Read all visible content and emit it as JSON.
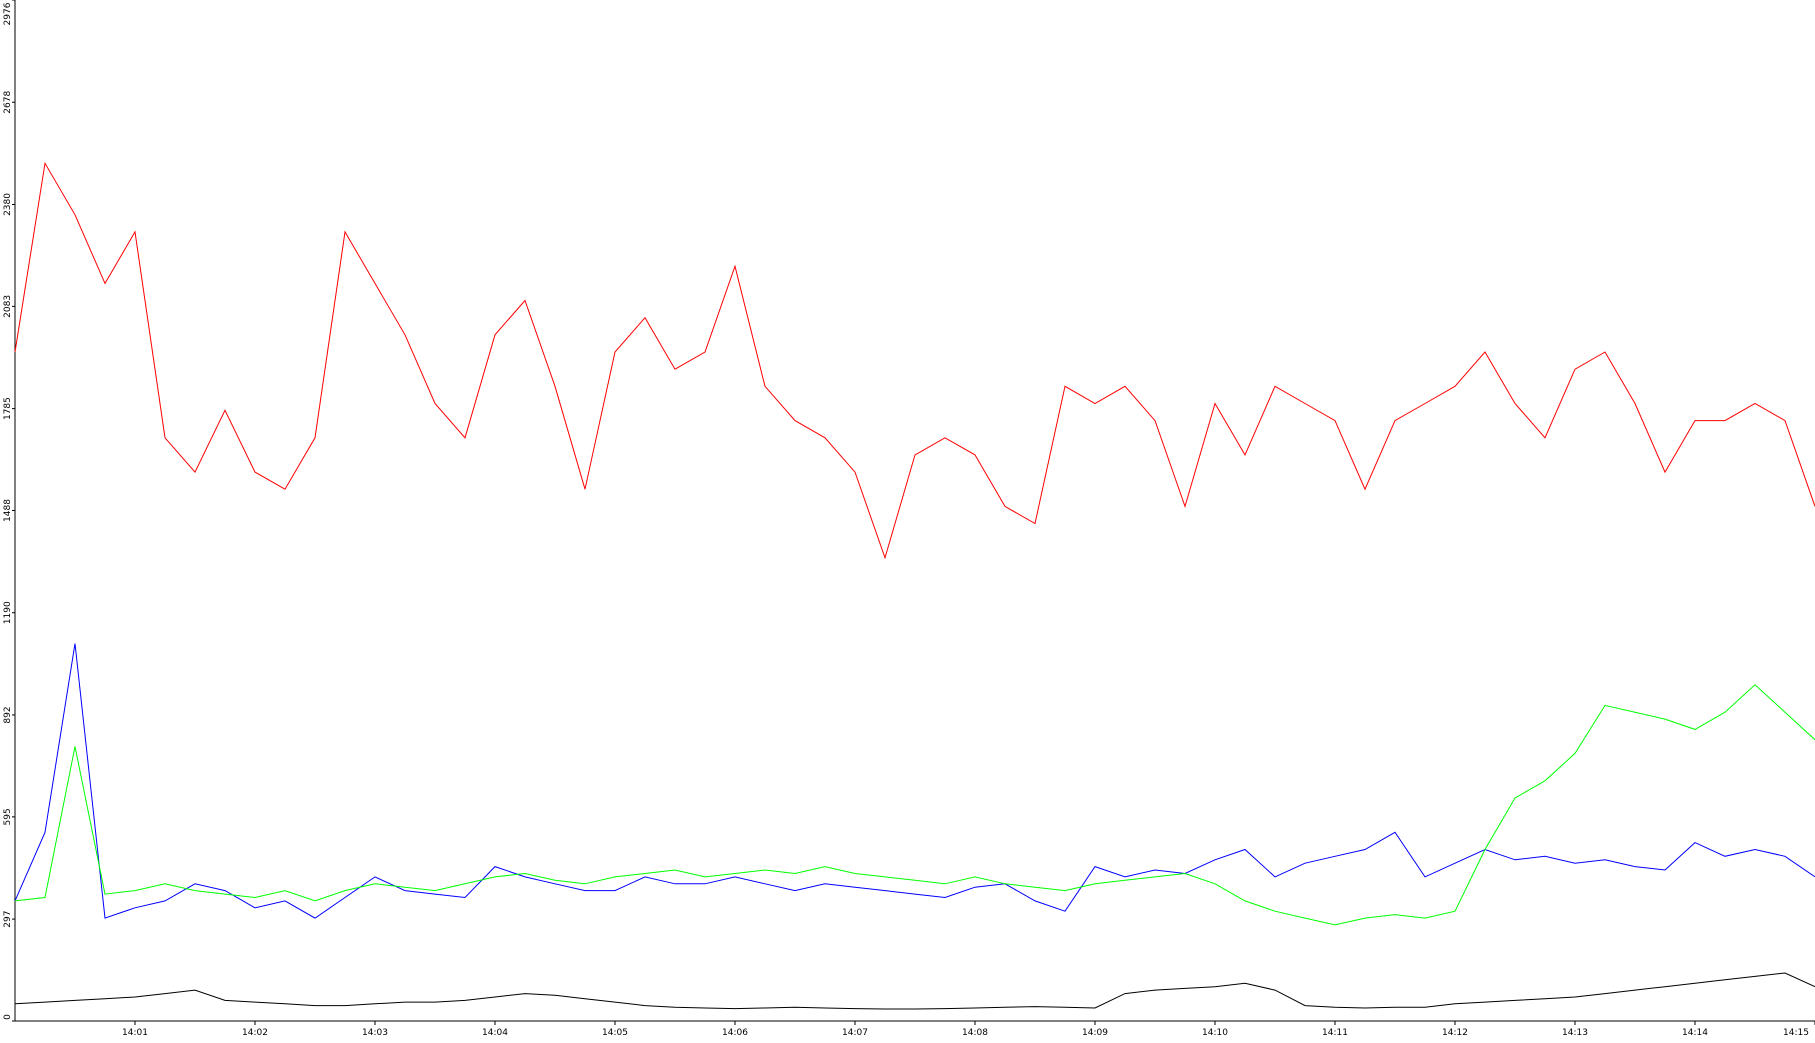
{
  "chart_data": {
    "type": "line",
    "title": "",
    "xlabel": "",
    "ylabel": "",
    "y_ticks": [
      "0",
      "297",
      "595",
      "892",
      "1190",
      "1488",
      "1785",
      "2083",
      "2380",
      "2678",
      "2976"
    ],
    "x_ticks": [
      "14:01",
      "14:02",
      "14:03",
      "14:04",
      "14:05",
      "14:06",
      "14:07",
      "14:08",
      "14:09",
      "14:10",
      "14:11",
      "14:12",
      "14:13",
      "14:14",
      "14:15"
    ],
    "x_range_minutes": [
      0.0,
      15.0
    ],
    "ylim": [
      0,
      2976
    ],
    "grid": false,
    "legend": "none",
    "series": [
      {
        "color": "#ff0000",
        "x": [
          0.0,
          0.25,
          0.5,
          0.75,
          1.0,
          1.25,
          1.5,
          1.75,
          2.0,
          2.25,
          2.5,
          2.75,
          3.0,
          3.25,
          3.5,
          3.75,
          4.0,
          4.25,
          4.5,
          4.75,
          5.0,
          5.25,
          5.5,
          5.75,
          6.0,
          6.25,
          6.5,
          6.75,
          7.0,
          7.25,
          7.5,
          7.75,
          8.0,
          8.25,
          8.5,
          8.75,
          9.0,
          9.25,
          9.5,
          9.75,
          10.0,
          10.25,
          10.5,
          10.75,
          11.0,
          11.25,
          11.5,
          11.75,
          12.0,
          12.25,
          12.5,
          12.75,
          13.0,
          13.25,
          13.5,
          13.75,
          14.0,
          14.25,
          14.5,
          14.75,
          15.0
        ],
        "values": [
          1950,
          2500,
          2350,
          2150,
          2300,
          1700,
          1600,
          1780,
          1600,
          1550,
          1700,
          2300,
          2150,
          2000,
          1800,
          1700,
          2000,
          2100,
          1850,
          1550,
          1950,
          2050,
          1900,
          1950,
          2200,
          1850,
          1750,
          1700,
          1600,
          1350,
          1650,
          1700,
          1650,
          1500,
          1450,
          1850,
          1800,
          1850,
          1750,
          1500,
          1800,
          1650,
          1850,
          1800,
          1750,
          1550,
          1750,
          1800,
          1850,
          1950,
          1800,
          1700,
          1900,
          1950,
          1800,
          1600,
          1750,
          1750,
          1800,
          1750,
          1500
        ]
      },
      {
        "color": "#0000ff",
        "x": [
          0.0,
          0.25,
          0.5,
          0.75,
          1.0,
          1.25,
          1.5,
          1.75,
          2.0,
          2.25,
          2.5,
          2.75,
          3.0,
          3.25,
          3.5,
          3.75,
          4.0,
          4.25,
          4.5,
          4.75,
          5.0,
          5.25,
          5.5,
          5.75,
          6.0,
          6.25,
          6.5,
          6.75,
          7.0,
          7.25,
          7.5,
          7.75,
          8.0,
          8.25,
          8.5,
          8.75,
          9.0,
          9.25,
          9.5,
          9.75,
          10.0,
          10.25,
          10.5,
          10.75,
          11.0,
          11.25,
          11.5,
          11.75,
          12.0,
          12.25,
          12.5,
          12.75,
          13.0,
          13.25,
          13.5,
          13.75,
          14.0,
          14.25,
          14.5,
          14.75,
          15.0
        ],
        "values": [
          350,
          550,
          1100,
          300,
          330,
          350,
          400,
          380,
          330,
          350,
          300,
          360,
          420,
          380,
          370,
          360,
          450,
          420,
          400,
          380,
          380,
          420,
          400,
          400,
          420,
          400,
          380,
          400,
          390,
          380,
          370,
          360,
          390,
          400,
          350,
          320,
          450,
          420,
          440,
          430,
          470,
          500,
          420,
          460,
          480,
          500,
          550,
          420,
          460,
          500,
          470,
          480,
          460,
          470,
          450,
          440,
          520,
          480,
          500,
          480,
          420
        ]
      },
      {
        "color": "#00ff00",
        "x": [
          0.0,
          0.25,
          0.5,
          0.75,
          1.0,
          1.25,
          1.5,
          1.75,
          2.0,
          2.25,
          2.5,
          2.75,
          3.0,
          3.25,
          3.5,
          3.75,
          4.0,
          4.25,
          4.5,
          4.75,
          5.0,
          5.25,
          5.5,
          5.75,
          6.0,
          6.25,
          6.5,
          6.75,
          7.0,
          7.25,
          7.5,
          7.75,
          8.0,
          8.25,
          8.5,
          8.75,
          9.0,
          9.25,
          9.5,
          9.75,
          10.0,
          10.25,
          10.5,
          10.75,
          11.0,
          11.25,
          11.5,
          11.75,
          12.0,
          12.25,
          12.5,
          12.75,
          13.0,
          13.25,
          13.5,
          13.75,
          14.0,
          14.25,
          14.5,
          14.75,
          15.0
        ],
        "values": [
          350,
          360,
          800,
          370,
          380,
          400,
          380,
          370,
          360,
          380,
          350,
          380,
          400,
          390,
          380,
          400,
          420,
          430,
          410,
          400,
          420,
          430,
          440,
          420,
          430,
          440,
          430,
          450,
          430,
          420,
          410,
          400,
          420,
          400,
          390,
          380,
          400,
          410,
          420,
          430,
          400,
          350,
          320,
          300,
          280,
          300,
          310,
          300,
          320,
          500,
          650,
          700,
          780,
          920,
          900,
          880,
          850,
          900,
          980,
          900,
          820
        ]
      },
      {
        "color": "#000000",
        "x": [
          0.0,
          0.25,
          0.5,
          0.75,
          1.0,
          1.25,
          1.5,
          1.75,
          2.0,
          2.25,
          2.5,
          2.75,
          3.0,
          3.25,
          3.5,
          3.75,
          4.0,
          4.25,
          4.5,
          4.75,
          5.0,
          5.25,
          5.5,
          5.75,
          6.0,
          6.25,
          6.5,
          6.75,
          7.0,
          7.25,
          7.5,
          7.75,
          8.0,
          8.25,
          8.5,
          8.75,
          9.0,
          9.25,
          9.5,
          9.75,
          10.0,
          10.25,
          10.5,
          10.75,
          11.0,
          11.25,
          11.5,
          11.75,
          12.0,
          12.25,
          12.5,
          12.75,
          13.0,
          13.25,
          13.5,
          13.75,
          14.0,
          14.25,
          14.5,
          14.75,
          15.0
        ],
        "values": [
          50,
          55,
          60,
          65,
          70,
          80,
          90,
          60,
          55,
          50,
          45,
          45,
          50,
          55,
          55,
          60,
          70,
          80,
          75,
          65,
          55,
          45,
          40,
          38,
          36,
          38,
          40,
          38,
          36,
          35,
          35,
          36,
          38,
          40,
          42,
          40,
          38,
          80,
          90,
          95,
          100,
          110,
          90,
          45,
          40,
          38,
          40,
          40,
          50,
          55,
          60,
          65,
          70,
          80,
          90,
          100,
          110,
          120,
          130,
          140,
          100
        ]
      }
    ]
  }
}
